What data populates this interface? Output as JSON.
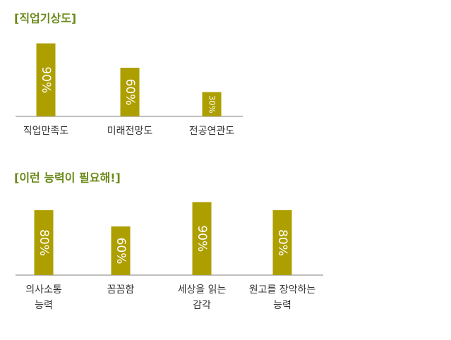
{
  "chart_data": [
    {
      "type": "bar",
      "title": "[직업기상도]",
      "color": "#ae9f00",
      "categories": [
        [
          "직업만족도"
        ],
        [
          "미래전망도"
        ],
        [
          "전공연관도"
        ]
      ],
      "values": [
        90,
        60,
        30
      ],
      "value_labels": [
        "90%",
        "60%",
        "30%"
      ]
    },
    {
      "type": "bar",
      "title": "[이런 능력이 필요해!]",
      "color": "#ae9f00",
      "categories": [
        [
          "의사소통",
          "능력"
        ],
        [
          "꼼꼼함"
        ],
        [
          "세상을 읽는",
          "감각"
        ],
        [
          "원고를 장악하는",
          "능력"
        ]
      ],
      "values": [
        80,
        60,
        90,
        80
      ],
      "value_labels": [
        "80%",
        "60%",
        "90%",
        "80%"
      ]
    }
  ]
}
